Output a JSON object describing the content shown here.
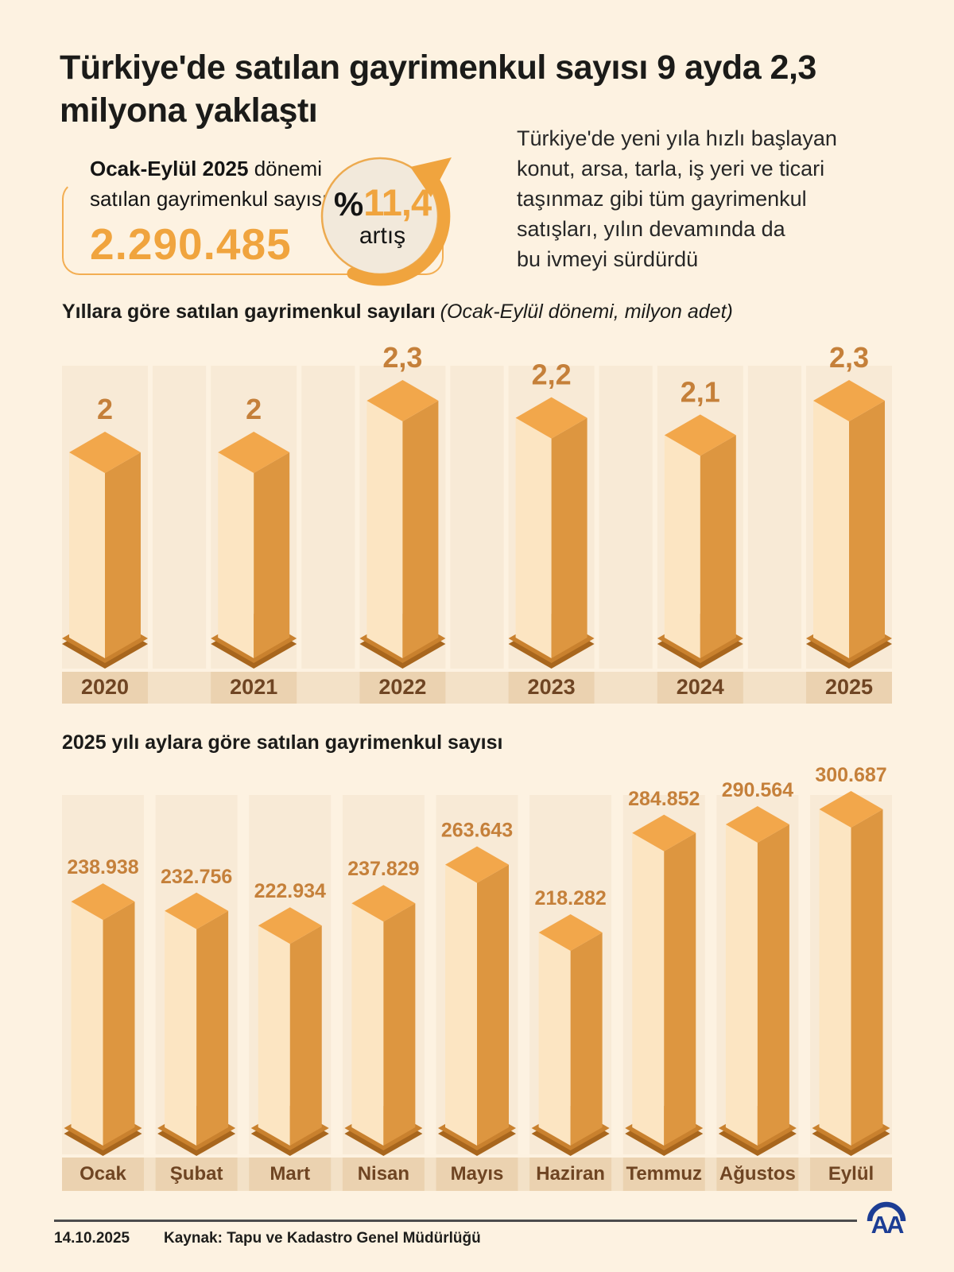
{
  "header": {
    "title": "Türkiye'de satılan gayrimenkul sayısı 9 ayda 2,3 milyona yaklaştı"
  },
  "stat_box": {
    "period_bold": "Ocak-Eylül 2025",
    "period_rest": " dönemi",
    "line2": "satılan gayrimenkul sayısı",
    "value": "2.290.485"
  },
  "increase": {
    "sign": "%",
    "value": "11,4",
    "label": "artış"
  },
  "intro_lines": [
    "Türkiye'de yeni yıla hızlı başlayan",
    "konut, arsa, tarla, iş yeri ve ticari",
    "taşınmaz gibi tüm gayrimenkul",
    "satışları, yılın devamında da",
    "bu ivmeyi sürdürdü"
  ],
  "sections": {
    "years": {
      "title": "Yıllara göre satılan gayrimenkul sayıları",
      "subtitle": "(Ocak-Eylül dönemi, milyon adet)"
    },
    "months": {
      "title": "2025 yılı aylara göre satılan gayrimenkul sayısı"
    }
  },
  "chart_data": [
    {
      "type": "bar",
      "title": "Yıllara göre satılan gayrimenkul sayıları",
      "subtitle": "(Ocak-Eylül dönemi, milyon adet)",
      "unit": "milyon adet",
      "categories": [
        "2020",
        "2021",
        "2022",
        "2023",
        "2024",
        "2025"
      ],
      "values": [
        2,
        2,
        2.3,
        2.2,
        2.1,
        2.3
      ],
      "value_labels": [
        "2",
        "2",
        "2,3",
        "2,2",
        "2,1",
        "2,3"
      ],
      "ylim": [
        0,
        2.3
      ],
      "legend": "none",
      "grid": false
    },
    {
      "type": "bar",
      "title": "2025 yılı aylara göre satılan gayrimenkul sayısı",
      "unit": "adet",
      "categories": [
        "Ocak",
        "Şubat",
        "Mart",
        "Nisan",
        "Mayıs",
        "Haziran",
        "Temmuz",
        "Ağustos",
        "Eylül"
      ],
      "values": [
        238938,
        232756,
        222934,
        237829,
        263643,
        218282,
        284852,
        290564,
        300687
      ],
      "value_labels": [
        "238.938",
        "232.756",
        "222.934",
        "237.829",
        "263.643",
        "218.282",
        "284.852",
        "290.564",
        "300.687"
      ],
      "ylim": [
        0,
        300687
      ],
      "legend": "none",
      "grid": false
    }
  ],
  "footer": {
    "date": "14.10.2025",
    "source": "Kaynak: Tapu ve Kadastro Genel Müdürlüğü",
    "logo_text": "AA"
  },
  "colors": {
    "page_bg": "#fdf2e1",
    "accent": "#f0a43e",
    "strip": "#f8ead6",
    "band": "#eace",
    "band_cat": "#ebd2b0",
    "band_light": "#f3e1c7",
    "bar_front": "#fce5c2",
    "bar_side": "#dd9640",
    "bar_top": "#f2a74b",
    "plate": "#c9812e",
    "plate_dark": "#a8661d",
    "value_label": "#c5803a",
    "category_label": "#6f4523",
    "text_dark": "#1d1d1b",
    "logo_blue": "#1c3d94"
  }
}
